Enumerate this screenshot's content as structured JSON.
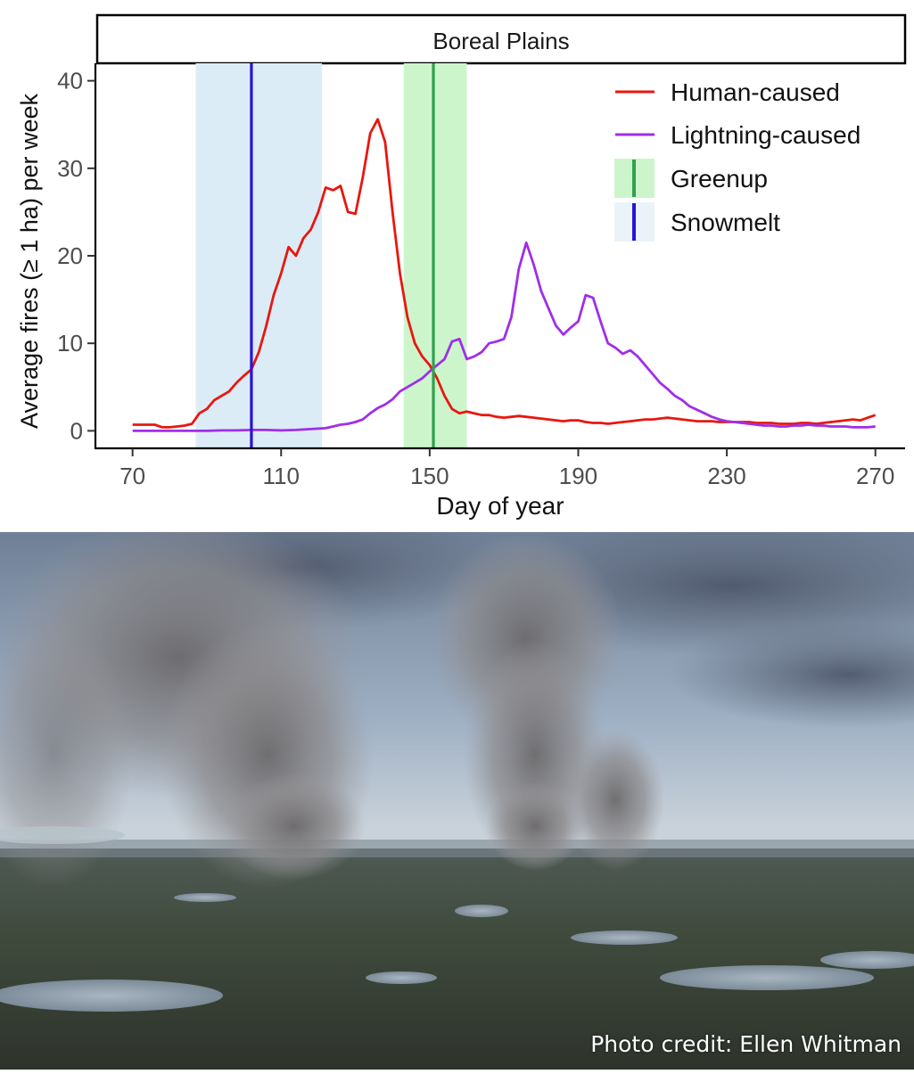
{
  "chart_data": {
    "type": "line",
    "title": "Boreal Plains",
    "xlabel": "Day of year",
    "ylabel": "Average fires (≥ 1 ha) per week",
    "xlim": [
      60,
      278
    ],
    "ylim": [
      -2,
      42
    ],
    "x_ticks": [
      70,
      110,
      150,
      190,
      230,
      270
    ],
    "y_ticks": [
      0,
      10,
      20,
      30,
      40
    ],
    "grid": false,
    "legend_position": "top-right",
    "series": [
      {
        "name": "Human-caused",
        "color": "#e8170f",
        "x": [
          70,
          72,
          74,
          76,
          78,
          80,
          82,
          84,
          86,
          88,
          90,
          92,
          94,
          96,
          98,
          100,
          102,
          104,
          106,
          108,
          110,
          112,
          114,
          116,
          118,
          120,
          122,
          124,
          126,
          128,
          130,
          132,
          134,
          136,
          138,
          140,
          142,
          144,
          146,
          148,
          150,
          152,
          154,
          156,
          158,
          160,
          162,
          164,
          166,
          168,
          170,
          172,
          174,
          176,
          178,
          180,
          182,
          184,
          186,
          188,
          190,
          192,
          194,
          196,
          198,
          200,
          202,
          204,
          206,
          208,
          210,
          212,
          214,
          216,
          218,
          220,
          222,
          224,
          226,
          228,
          230,
          232,
          234,
          236,
          238,
          240,
          242,
          244,
          246,
          248,
          250,
          252,
          254,
          256,
          258,
          260,
          262,
          264,
          266,
          268,
          270
        ],
        "y": [
          0.7,
          0.7,
          0.7,
          0.7,
          0.4,
          0.4,
          0.5,
          0.6,
          0.8,
          2,
          2.5,
          3.5,
          4,
          4.5,
          5.5,
          6.3,
          7,
          9,
          12,
          15.5,
          18,
          21,
          20,
          22,
          23,
          25,
          27.8,
          27.5,
          28,
          25,
          24.8,
          29,
          34,
          35.6,
          33,
          25,
          18,
          13,
          10,
          8.5,
          7.5,
          6,
          4,
          2.5,
          2,
          2.2,
          2,
          1.8,
          1.8,
          1.6,
          1.5,
          1.6,
          1.7,
          1.6,
          1.5,
          1.4,
          1.3,
          1.2,
          1.1,
          1.2,
          1.2,
          1,
          0.9,
          0.9,
          0.8,
          0.9,
          1,
          1.1,
          1.2,
          1.3,
          1.3,
          1.4,
          1.5,
          1.4,
          1.3,
          1.2,
          1.1,
          1.1,
          1.1,
          1,
          1,
          1,
          1,
          1,
          0.9,
          0.9,
          0.9,
          0.8,
          0.8,
          0.8,
          0.9,
          0.9,
          0.8,
          0.9,
          1,
          1.1,
          1.2,
          1.3,
          1.2,
          1.5,
          1.8
        ]
      },
      {
        "name": "Lightning-caused",
        "color": "#a02ee8",
        "x": [
          70,
          74,
          78,
          82,
          86,
          90,
          94,
          98,
          102,
          106,
          110,
          114,
          118,
          122,
          124,
          126,
          128,
          130,
          132,
          134,
          136,
          138,
          140,
          142,
          144,
          146,
          148,
          150,
          152,
          154,
          156,
          158,
          160,
          162,
          164,
          166,
          168,
          170,
          172,
          174,
          176,
          178,
          180,
          182,
          184,
          186,
          188,
          190,
          192,
          194,
          196,
          198,
          200,
          202,
          204,
          206,
          208,
          210,
          212,
          214,
          216,
          218,
          220,
          222,
          224,
          226,
          228,
          230,
          232,
          234,
          236,
          238,
          240,
          242,
          244,
          246,
          248,
          250,
          252,
          254,
          256,
          258,
          260,
          262,
          264,
          266,
          268,
          270
        ],
        "y": [
          0,
          0,
          0,
          0,
          0,
          0,
          0.05,
          0.05,
          0.1,
          0.1,
          0.05,
          0.1,
          0.2,
          0.3,
          0.5,
          0.7,
          0.8,
          1,
          1.3,
          2,
          2.6,
          3,
          3.6,
          4.5,
          5,
          5.5,
          6,
          6.8,
          7.5,
          8.2,
          10.2,
          10.5,
          8.2,
          8.5,
          9,
          10,
          10.2,
          10.5,
          13,
          18.5,
          21.5,
          19,
          16,
          14,
          12,
          11,
          11.8,
          12.5,
          15.5,
          15.2,
          12.5,
          10,
          9.5,
          8.8,
          9.2,
          8.5,
          7.5,
          6.5,
          5.5,
          4.8,
          4,
          3.5,
          2.8,
          2.4,
          2,
          1.6,
          1.3,
          1.1,
          1,
          0.9,
          0.8,
          0.7,
          0.6,
          0.6,
          0.5,
          0.5,
          0.6,
          0.6,
          0.7,
          0.6,
          0.6,
          0.5,
          0.5,
          0.5,
          0.4,
          0.4,
          0.4,
          0.5
        ]
      }
    ],
    "bands": [
      {
        "name": "Snowmelt",
        "color": "#2a12d8",
        "fill": "#dcecf6",
        "line": 102,
        "range": [
          87,
          121
        ]
      },
      {
        "name": "Greenup",
        "color": "#2fa14f",
        "fill": "#ccf5cc",
        "line": 151,
        "range": [
          143,
          160
        ]
      }
    ]
  },
  "photo": {
    "credit": "Photo credit: Ellen Whitman"
  }
}
